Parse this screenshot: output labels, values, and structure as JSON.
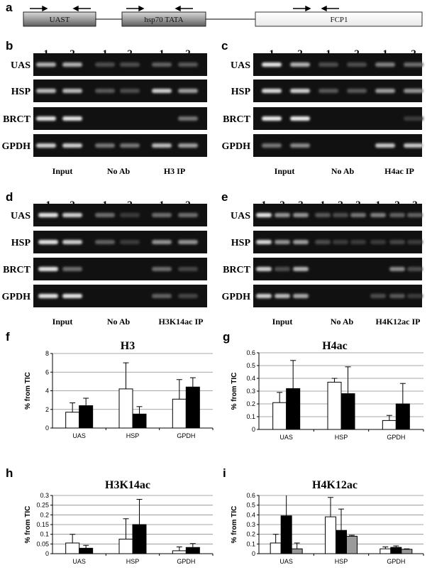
{
  "panel_letters": [
    "a",
    "b",
    "c",
    "d",
    "e",
    "f",
    "g",
    "h",
    "i"
  ],
  "diagram": {
    "boxes": [
      "UAST",
      "hsp70 TATA",
      "FCP1"
    ]
  },
  "gels": [
    {
      "letter": "b",
      "rows": [
        "UAS",
        "HSP",
        "BRCT",
        "GPDH"
      ],
      "lane_numbers": [
        "1",
        "2",
        "1",
        "2",
        "1",
        "2"
      ],
      "groups": [
        "Input",
        "No Ab",
        "H3 IP"
      ]
    },
    {
      "letter": "c",
      "rows": [
        "UAS",
        "HSP",
        "BRCT",
        "GPDH"
      ],
      "lane_numbers": [
        "1",
        "2",
        "1",
        "2",
        "1",
        "2"
      ],
      "groups": [
        "Input",
        "No Ab",
        "H4ac  IP"
      ]
    },
    {
      "letter": "d",
      "rows": [
        "UAS",
        "HSP",
        "BRCT",
        "GPDH"
      ],
      "lane_numbers": [
        "1",
        "2",
        "1",
        "2",
        "1",
        "2"
      ],
      "groups": [
        "Input",
        "No Ab",
        "H3K14ac IP"
      ]
    },
    {
      "letter": "e",
      "rows": [
        "UAS",
        "HSP",
        "BRCT",
        "GPDH"
      ],
      "lane_numbers": [
        "1",
        "2",
        "3",
        "1",
        "2",
        "3",
        "1",
        "2",
        "3"
      ],
      "groups": [
        "Input",
        "No Ab",
        "H4K12ac IP"
      ]
    }
  ],
  "chart_data": [
    {
      "type": "bar",
      "title": "H3",
      "ylabel": "% from TIC",
      "ylim": [
        0,
        8
      ],
      "yticks": [
        "0",
        "2",
        "4",
        "6",
        "8"
      ],
      "categories": [
        "UAS",
        "HSP",
        "GPDH"
      ],
      "series": [
        {
          "color": "#ffffff",
          "values": [
            1.7,
            4.2,
            3.1
          ],
          "errors": [
            1.0,
            2.8,
            2.1
          ]
        },
        {
          "color": "#000000",
          "values": [
            2.4,
            1.5,
            4.4
          ],
          "errors": [
            0.8,
            0.8,
            1.0
          ]
        }
      ]
    },
    {
      "type": "bar",
      "title": "H4ac",
      "ylabel": "% from TIC",
      "ylim": [
        0,
        0.6
      ],
      "yticks": [
        "0",
        "0.1",
        "0.2",
        "0.3",
        "0.4",
        "0.5",
        "0.6"
      ],
      "categories": [
        "UAS",
        "HSP",
        "GPDH"
      ],
      "series": [
        {
          "color": "#ffffff",
          "values": [
            0.21,
            0.37,
            0.07
          ],
          "errors": [
            0.08,
            0.03,
            0.04
          ]
        },
        {
          "color": "#000000",
          "values": [
            0.32,
            0.28,
            0.2
          ],
          "errors": [
            0.22,
            0.21,
            0.16
          ]
        }
      ]
    },
    {
      "type": "bar",
      "title": "H3K14ac",
      "ylabel": "% from TIC",
      "ylim": [
        0,
        0.3
      ],
      "yticks": [
        "0",
        "0.05",
        "0.1",
        "0.15",
        "0.2",
        "0.25",
        "0.3"
      ],
      "categories": [
        "UAS",
        "HSP",
        "GPDH"
      ],
      "series": [
        {
          "color": "#ffffff",
          "values": [
            0.055,
            0.075,
            0.015
          ],
          "errors": [
            0.045,
            0.105,
            0.02
          ]
        },
        {
          "color": "#000000",
          "values": [
            0.028,
            0.15,
            0.032
          ],
          "errors": [
            0.015,
            0.13,
            0.02
          ]
        }
      ]
    },
    {
      "type": "bar",
      "title": "H4K12ac",
      "ylabel": "% from TIC",
      "ylim": [
        0,
        0.6
      ],
      "yticks": [
        "0",
        "0.1",
        "0.2",
        "0.3",
        "0.4",
        "0.5",
        "0.6"
      ],
      "categories": [
        "UAS",
        "HSP",
        "GPDH"
      ],
      "series": [
        {
          "color": "#ffffff",
          "values": [
            0.11,
            0.38,
            0.05
          ],
          "errors": [
            0.09,
            0.2,
            0.02
          ]
        },
        {
          "color": "#000000",
          "values": [
            0.39,
            0.24,
            0.065
          ],
          "errors": [
            0.22,
            0.22,
            0.015
          ]
        },
        {
          "color": "#9a9a9a",
          "values": [
            0.05,
            0.18,
            0.045
          ],
          "errors": [
            0.06,
            0.01,
            0.005
          ]
        }
      ]
    }
  ]
}
